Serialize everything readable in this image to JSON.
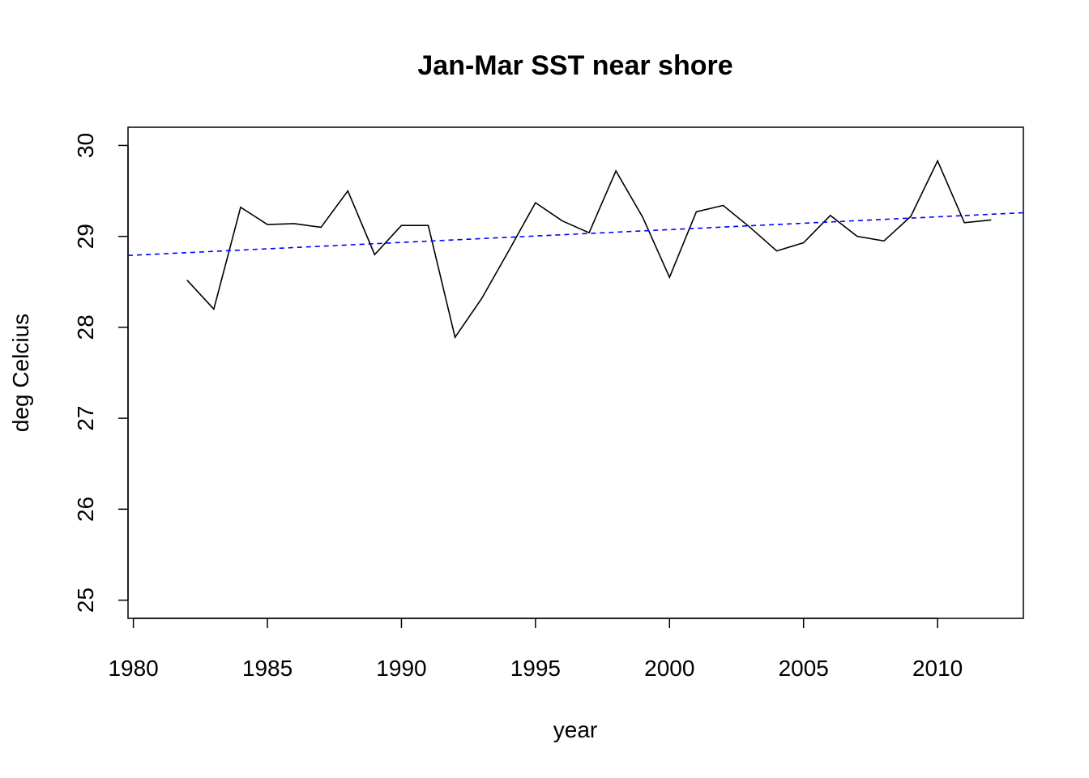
{
  "chart_data": {
    "type": "line",
    "title": "Jan-Mar SST near shore",
    "xlabel": "year",
    "ylabel": "deg Celcius",
    "xlim": [
      1979.8,
      2013.2
    ],
    "ylim": [
      24.8,
      30.2
    ],
    "x_ticks": [
      1980,
      1985,
      1990,
      1995,
      2000,
      2005,
      2010
    ],
    "y_ticks": [
      25,
      26,
      27,
      28,
      29,
      30
    ],
    "x_tick_labels": [
      "1980",
      "1985",
      "1990",
      "1995",
      "2000",
      "2005",
      "2010"
    ],
    "y_tick_labels": [
      "25",
      "26",
      "27",
      "28",
      "29",
      "30"
    ],
    "grid": false,
    "series": [
      {
        "style": "solid",
        "color": "#000000",
        "x": [
          1982,
          1983,
          1984,
          1985,
          1986,
          1987,
          1988,
          1989,
          1990,
          1991,
          1992,
          1993,
          1994,
          1995,
          1996,
          1997,
          1998,
          1999,
          2000,
          2001,
          2002,
          2003,
          2004,
          2005,
          2006,
          2007,
          2008,
          2009,
          2010,
          2011,
          2012
        ],
        "y": [
          28.52,
          28.2,
          29.32,
          29.13,
          29.14,
          29.1,
          29.5,
          28.8,
          29.12,
          29.12,
          27.89,
          28.32,
          28.84,
          29.37,
          29.17,
          29.04,
          29.72,
          29.21,
          28.55,
          29.27,
          29.34,
          29.1,
          28.84,
          28.93,
          29.23,
          29.0,
          28.95,
          29.22,
          29.83,
          29.15,
          29.18
        ]
      },
      {
        "style": "dashed",
        "color": "#0000ff",
        "x": [
          1979.8,
          2013.2
        ],
        "y": [
          28.79,
          29.26
        ]
      }
    ]
  }
}
